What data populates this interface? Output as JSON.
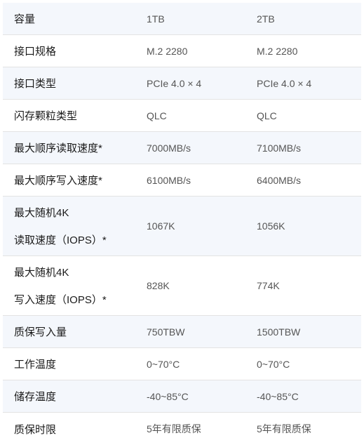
{
  "rows": [
    {
      "label": "容量",
      "v1": "1TB",
      "v2": "2TB"
    },
    {
      "label": "接口规格",
      "v1": "M.2 2280",
      "v2": "M.2 2280"
    },
    {
      "label": "接口类型",
      "v1": "PCIe 4.0 × 4",
      "v2": "PCIe 4.0 × 4"
    },
    {
      "label": "闪存颗粒类型",
      "v1": "QLC",
      "v2": "QLC"
    },
    {
      "label": "最大顺序读取速度*",
      "v1": "7000MB/s",
      "v2": "7100MB/s"
    },
    {
      "label": "最大顺序写入速度*",
      "v1": "6100MB/s",
      "v2": "6400MB/s"
    },
    {
      "labelLines": [
        "最大随机4K",
        "读取速度（IOPS）*"
      ],
      "v1": "1067K",
      "v2": "1056K"
    },
    {
      "labelLines": [
        "最大随机4K",
        "写入速度（IOPS）*"
      ],
      "v1": "828K",
      "v2": "774K"
    },
    {
      "label": "质保写入量",
      "v1": "750TBW",
      "v2": "1500TBW"
    },
    {
      "label": "工作温度",
      "v1": "0~70°C",
      "v2": "0~70°C"
    },
    {
      "label": "储存温度",
      "v1": "-40~85°C",
      "v2": "-40~85°C"
    },
    {
      "label": "质保时限",
      "v1": "5年有限质保",
      "v2": "5年有限质保"
    }
  ],
  "colors": {
    "oddBg": "#f4f7fc",
    "evenBg": "#ffffff",
    "labelColor": "#1a1a1a",
    "valueColor": "#555555",
    "borderColor": "#e3e3e3"
  }
}
